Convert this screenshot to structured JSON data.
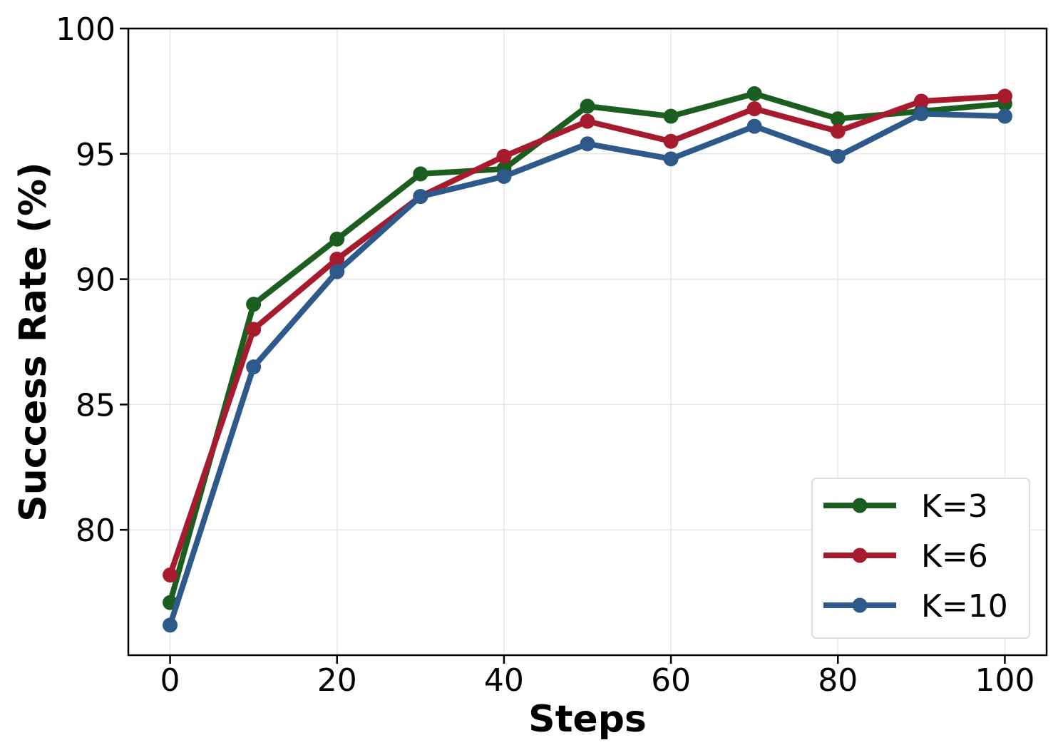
{
  "chart_data": {
    "type": "line",
    "title": "",
    "xlabel": "Steps",
    "ylabel": "Success Rate (%)",
    "xlim": [
      -5,
      105
    ],
    "ylim": [
      75,
      100
    ],
    "x": [
      0,
      10,
      20,
      30,
      40,
      50,
      60,
      70,
      80,
      90,
      100
    ],
    "xticks": [
      0,
      20,
      40,
      60,
      80,
      100
    ],
    "yticks": [
      80,
      85,
      90,
      95,
      100
    ],
    "grid": true,
    "legend_position": "bottom-right",
    "series": [
      {
        "name": "K=3",
        "color": "#1b5e20",
        "values": [
          77.1,
          89.0,
          91.6,
          94.2,
          94.4,
          96.9,
          96.5,
          97.4,
          96.4,
          96.7,
          97.0
        ]
      },
      {
        "name": "K=6",
        "color": "#a61c2e",
        "values": [
          78.2,
          88.0,
          90.8,
          93.3,
          94.9,
          96.3,
          95.5,
          96.8,
          95.9,
          97.1,
          97.3
        ]
      },
      {
        "name": "K=10",
        "color": "#2d5a8a",
        "values": [
          76.2,
          86.5,
          90.3,
          93.3,
          94.1,
          95.4,
          94.8,
          96.1,
          94.9,
          96.6,
          96.5
        ]
      }
    ]
  }
}
